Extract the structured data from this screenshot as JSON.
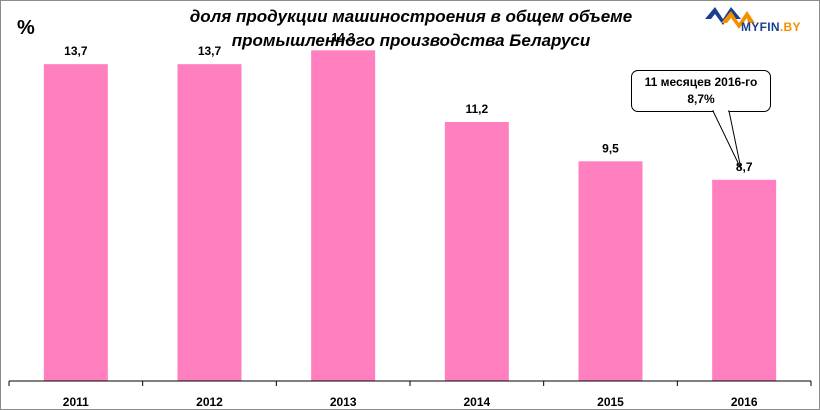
{
  "logo": {
    "text_main": "MYFIN",
    "text_suffix": ".BY"
  },
  "chart_data": {
    "type": "bar",
    "title": [
      "доля продукции машиностроения в общем объеме",
      "промышленного производства Беларуси"
    ],
    "unit_label": "%",
    "categories": [
      "2011",
      "2012",
      "2013",
      "2014",
      "2015",
      "2016"
    ],
    "values": [
      13.7,
      13.7,
      14.3,
      11.2,
      9.5,
      8.7
    ],
    "value_labels": [
      "13,7",
      "13,7",
      "14,3",
      "11,2",
      "9,5",
      "8,7"
    ],
    "ylim": [
      0,
      16
    ],
    "bar_color": "#ff7fbf",
    "grid": false,
    "annotation": {
      "category": "2016",
      "lines": [
        "11 месяцев 2016-го",
        "8,7%"
      ]
    }
  }
}
